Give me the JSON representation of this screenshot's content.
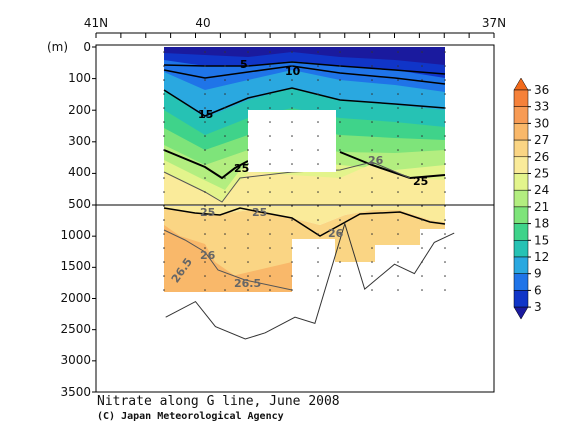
{
  "chart_data": {
    "type": "heatmap",
    "title": "Nitrate along G line, June 2008",
    "credit": "(C) Japan Meteorological Agency",
    "ylabel": "(m)",
    "x_ticks_top": [
      "41N",
      "40",
      "37N"
    ],
    "y_ticks_upper": [
      "0",
      "100",
      "200",
      "300",
      "400",
      "500"
    ],
    "y_ticks_lower": [
      "1000",
      "1500",
      "2000",
      "2500",
      "3000",
      "3500"
    ],
    "ylim_upper": [
      0,
      500
    ],
    "ylim_lower": [
      500,
      3500
    ],
    "xlim_lat": [
      41,
      37
    ],
    "colorbar": {
      "levels": [
        "36",
        "33",
        "30",
        "27",
        "26",
        "25",
        "24",
        "21",
        "18",
        "15",
        "12",
        "9",
        "6",
        "3"
      ],
      "colors": [
        "#f26a1b",
        "#f5813a",
        "#f79b55",
        "#f9b86a",
        "#fad584",
        "#faeb9a",
        "#e3f48c",
        "#b3ee80",
        "#7ee47a",
        "#3fd38a",
        "#26c2b4",
        "#2aa8e0",
        "#1f74e8",
        "#1035c8",
        "#1a1a9e"
      ]
    },
    "contour_labels": [
      "5",
      "10",
      "15",
      "25",
      "25",
      "25",
      "25",
      "26",
      "26",
      "26",
      "26.5",
      "26.5"
    ],
    "series": [
      {
        "name": "",
        "x_lat": [
          40.3,
          40.0,
          39.8,
          39.5,
          39.3,
          39.0,
          38.8,
          38.5,
          38.3,
          38.0,
          37.8,
          37.6,
          37.4
        ],
        "y": [
          2300,
          2050,
          2450,
          2650,
          2550,
          2300,
          2400,
          800,
          1850,
          1450,
          1600,
          1100,
          950
        ]
      }
    ]
  }
}
